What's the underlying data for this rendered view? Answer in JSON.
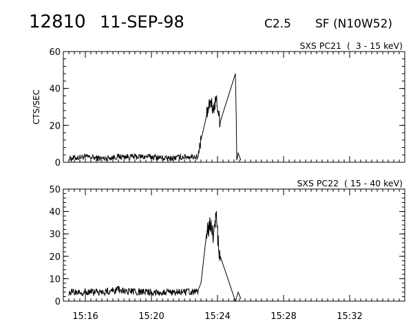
{
  "header": {
    "event_id": "12810",
    "date": "11-SEP-98",
    "goes_class": "C2.5",
    "flare_info": "SF (N10W52)"
  },
  "chart_data": [
    {
      "type": "line",
      "title": "SXS PC21  (  3 - 15 keV)",
      "xlabel": "",
      "ylabel": "CTS/SEC",
      "xlim": [
        "15:14:40",
        "15:35:20"
      ],
      "ylim": [
        0,
        60
      ],
      "yticks": [
        0,
        20,
        40,
        60
      ],
      "xticks": [
        "15:16",
        "15:20",
        "15:24",
        "15:28",
        "15:32"
      ],
      "grid": false,
      "series": [
        {
          "x": [
            "15:15:00",
            "15:16:00",
            "15:17:00",
            "15:18:00",
            "15:19:00",
            "15:20:00",
            "15:21:00",
            "15:22:00",
            "15:22:50",
            "15:23:00",
            "15:23:20",
            "15:23:35",
            "15:23:45",
            "15:23:55",
            "15:24:05",
            "15:24:10",
            "15:25:05",
            "15:25:08",
            "15:25:10",
            "15:25:15",
            "15:25:25"
          ],
          "y": [
            2,
            3,
            2,
            3,
            3,
            3,
            2,
            3,
            3,
            12,
            25,
            33,
            28,
            35,
            25,
            22,
            48,
            25,
            1,
            5,
            1
          ]
        }
      ]
    },
    {
      "type": "line",
      "title": "SXS PC22  ( 15 - 40 keV)",
      "xlabel": "",
      "ylabel": "",
      "xlim": [
        "15:14:40",
        "15:35:20"
      ],
      "ylim": [
        0,
        50
      ],
      "yticks": [
        0,
        10,
        20,
        30,
        40,
        50
      ],
      "xticks": [
        "15:16",
        "15:20",
        "15:24",
        "15:28",
        "15:32"
      ],
      "grid": false,
      "series": [
        {
          "x": [
            "15:15:00",
            "15:16:00",
            "15:17:00",
            "15:18:00",
            "15:19:00",
            "15:20:00",
            "15:21:00",
            "15:22:00",
            "15:22:50",
            "15:23:00",
            "15:23:20",
            "15:23:35",
            "15:23:45",
            "15:23:55",
            "15:24:05",
            "15:24:10",
            "15:25:05",
            "15:25:08",
            "15:25:10",
            "15:25:15",
            "15:25:25"
          ],
          "y": [
            4,
            4,
            4,
            5,
            4,
            4,
            4,
            4,
            4,
            8,
            30,
            35,
            28,
            38,
            22,
            20,
            0,
            1,
            2,
            4,
            1
          ]
        }
      ]
    }
  ]
}
